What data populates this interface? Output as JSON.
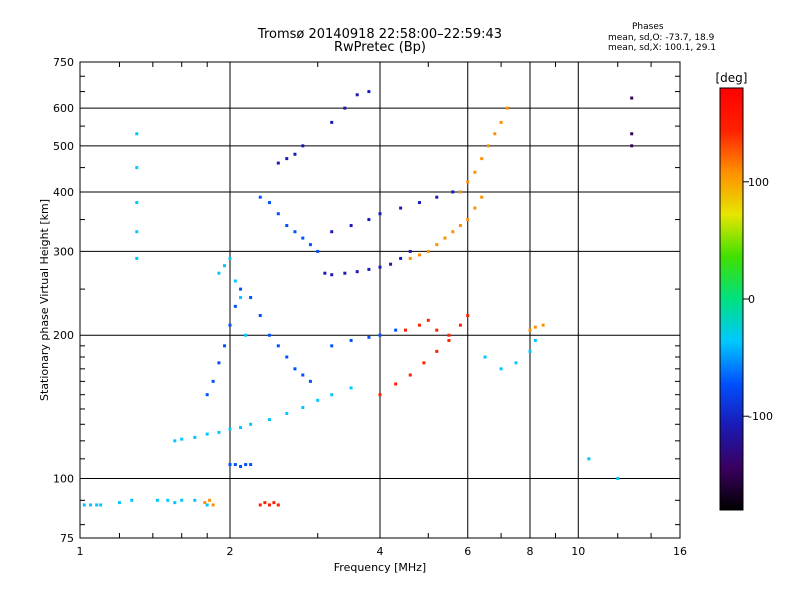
{
  "header": {
    "title": "Tromsø 20140918 22:58:00–22:59:43",
    "subtitle": "RwPretec (Bp)",
    "stats_title": "Phases",
    "stats_line1": "mean, sd,O: -73.7, 18.9",
    "stats_line2": "mean, sd,X: 100.1, 29.1"
  },
  "chart_data": {
    "type": "scatter",
    "title": "Tromsø 20140918 22:58:00–22:59:43",
    "subtitle": "RwPretec (Bp)",
    "xlabel": "Frequency [MHz]",
    "ylabel": "Stationary phase Virtual Height [km]",
    "x_scale": "log",
    "y_scale": "log",
    "xlim": [
      1,
      16
    ],
    "ylim": [
      75,
      750
    ],
    "x_ticks": [
      1,
      2,
      4,
      6,
      8,
      10,
      16
    ],
    "y_ticks": [
      75,
      100,
      200,
      300,
      400,
      500,
      600,
      750
    ],
    "x_grid": [
      2,
      4,
      6,
      8,
      10
    ],
    "y_grid": [
      100,
      200,
      300,
      400,
      500,
      600
    ],
    "colorbar": {
      "label": "[deg]",
      "range": [
        -180,
        180
      ],
      "ticks": [
        100,
        0,
        -100
      ],
      "colors": [
        "#000000",
        "#3a0060",
        "#1a1ab4",
        "#0050ff",
        "#00c8ff",
        "#00e080",
        "#40e000",
        "#e6e600",
        "#ff9000",
        "#ff2000",
        "#ff0000"
      ]
    },
    "series": [
      {
        "x": [
          1.02,
          1.05,
          1.08,
          1.1,
          1.2,
          1.27,
          1.43,
          1.5,
          1.55,
          1.6,
          1.7,
          1.8
        ],
        "y": [
          88,
          88,
          88,
          88,
          89,
          90,
          90,
          90,
          89,
          90,
          90,
          88
        ],
        "phase": -40
      },
      {
        "x": [
          1.78,
          1.82,
          1.85
        ],
        "y": [
          89,
          90,
          88
        ],
        "phase": 115
      },
      {
        "x": [
          2.3,
          2.35,
          2.4,
          2.45,
          2.5
        ],
        "y": [
          88,
          89,
          88,
          89,
          88
        ],
        "phase": 150
      },
      {
        "x": [
          2.0,
          2.05,
          2.1,
          2.15,
          2.2
        ],
        "y": [
          107,
          107,
          106,
          107,
          107
        ],
        "phase": -70
      },
      {
        "x": [
          1.55,
          1.6,
          1.7,
          1.8,
          1.9,
          2.0,
          2.1,
          2.2,
          2.4,
          2.6,
          2.8,
          3.0,
          3.2,
          3.5
        ],
        "y": [
          120,
          121,
          122,
          124,
          125,
          127,
          128,
          130,
          133,
          137,
          141,
          146,
          150,
          155
        ],
        "phase": -40
      },
      {
        "x": [
          1.8,
          1.85,
          1.9,
          1.95,
          2.0,
          2.05,
          2.1,
          2.2,
          2.3,
          2.4,
          2.5,
          2.6,
          2.7,
          2.8,
          2.9
        ],
        "y": [
          150,
          160,
          175,
          190,
          210,
          230,
          250,
          240,
          220,
          200,
          190,
          180,
          170,
          165,
          160
        ],
        "phase": -70
      },
      {
        "x": [
          1.9,
          1.95,
          2.0,
          2.05,
          2.1,
          2.15
        ],
        "y": [
          270,
          280,
          290,
          260,
          240,
          200
        ],
        "phase": -30
      },
      {
        "x": [
          2.3,
          2.4,
          2.5,
          2.6,
          2.7,
          2.8,
          2.9,
          3.0
        ],
        "y": [
          390,
          380,
          360,
          340,
          330,
          320,
          310,
          300
        ],
        "phase": -90
      },
      {
        "x": [
          2.5,
          2.6,
          2.7,
          2.8
        ],
        "y": [
          460,
          470,
          480,
          500
        ],
        "phase": -100
      },
      {
        "x": [
          3.1,
          3.2,
          3.4,
          3.6,
          3.8,
          4.0,
          4.2,
          4.4,
          4.6
        ],
        "y": [
          270,
          268,
          270,
          272,
          275,
          278,
          282,
          290,
          300
        ],
        "phase": -95
      },
      {
        "x": [
          3.2,
          3.5,
          3.8,
          4.0,
          4.4,
          4.8,
          5.2,
          5.6
        ],
        "y": [
          330,
          340,
          350,
          360,
          370,
          380,
          390,
          400
        ],
        "phase": -100
      },
      {
        "x": [
          3.2,
          3.4,
          3.6,
          3.8
        ],
        "y": [
          560,
          600,
          640,
          650
        ],
        "phase": -110
      },
      {
        "x": [
          4.6,
          4.8,
          5.0,
          5.2,
          5.4,
          5.6,
          5.8,
          6.0,
          6.2,
          6.4
        ],
        "y": [
          290,
          295,
          300,
          310,
          320,
          330,
          340,
          350,
          370,
          390
        ],
        "phase": 100
      },
      {
        "x": [
          5.8,
          6.0,
          6.2,
          6.4,
          6.6,
          6.8,
          7.0,
          7.2
        ],
        "y": [
          400,
          420,
          440,
          470,
          500,
          530,
          560,
          600
        ],
        "phase": 120
      },
      {
        "x": [
          4.0,
          4.3,
          4.6,
          4.9,
          5.2,
          5.5
        ],
        "y": [
          150,
          158,
          165,
          175,
          185,
          195
        ],
        "phase": 155
      },
      {
        "x": [
          3.2,
          3.5,
          3.8,
          4.0,
          4.3
        ],
        "y": [
          190,
          195,
          198,
          200,
          205
        ],
        "phase": -70
      },
      {
        "x": [
          4.5,
          4.8,
          5.0,
          5.2,
          5.5,
          5.8,
          6.0
        ],
        "y": [
          205,
          210,
          215,
          205,
          200,
          210,
          220
        ],
        "phase": 150
      },
      {
        "x": [
          6.5,
          7.0,
          7.5,
          8.0,
          8.2
        ],
        "y": [
          180,
          170,
          175,
          185,
          195
        ],
        "phase": -30
      },
      {
        "x": [
          8.0,
          8.2,
          8.5
        ],
        "y": [
          205,
          208,
          210
        ],
        "phase": 110
      },
      {
        "x": [
          1.3,
          1.3,
          1.3,
          1.3,
          1.3
        ],
        "y": [
          290,
          330,
          380,
          450,
          530
        ],
        "phase": -40
      },
      {
        "x": [
          12.8,
          12.8,
          12.8
        ],
        "y": [
          500,
          530,
          630
        ],
        "phase": -150
      },
      {
        "x": [
          10.5,
          12.0
        ],
        "y": [
          110,
          100
        ],
        "phase": -20
      }
    ]
  }
}
